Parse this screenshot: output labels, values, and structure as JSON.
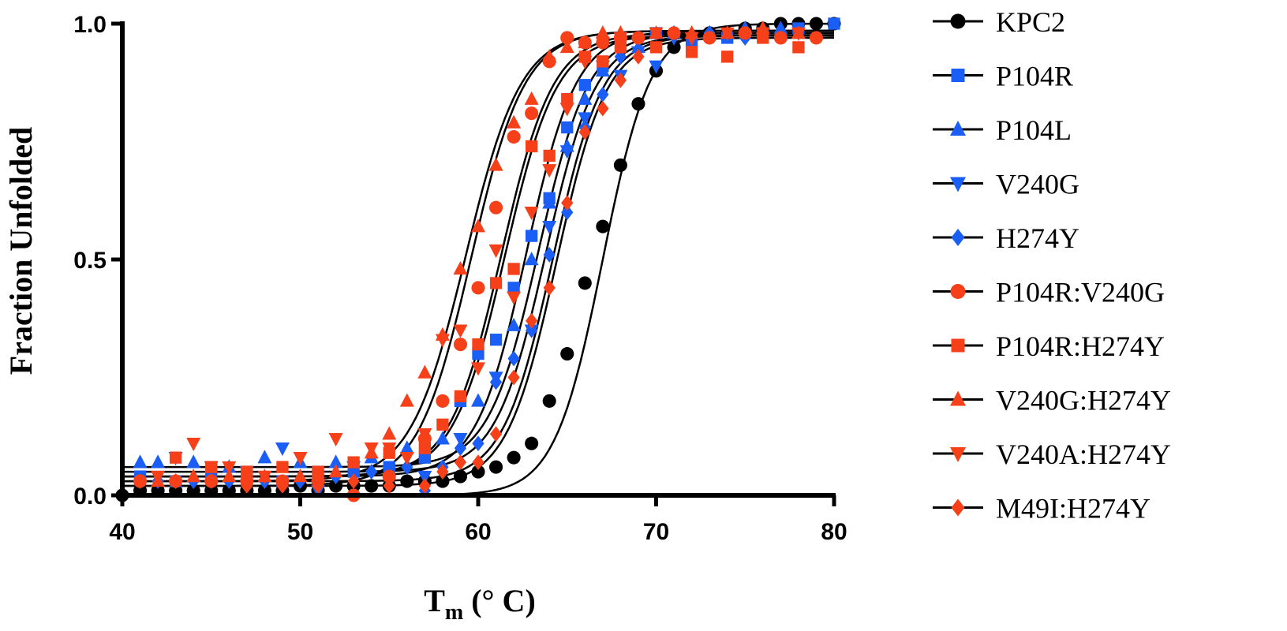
{
  "chart_data": {
    "type": "scatter",
    "title": "",
    "xlabel": "T",
    "xlabel_sub": "m",
    "xlabel_unit": " (° C)",
    "ylabel": "Fraction Unfolded",
    "xlim": [
      40,
      80
    ],
    "ylim": [
      0,
      1
    ],
    "xticks": [
      "40",
      "50",
      "60",
      "70",
      "80"
    ],
    "yticks": [
      "0.0",
      "0.5",
      "1.0"
    ],
    "grid": false,
    "legend_position": "right",
    "series": [
      {
        "name": "KPC2",
        "color": "#000000",
        "marker": "circle",
        "tm": 67.0,
        "slope": 1.35,
        "base": 0.0,
        "top": 1.0,
        "x": [
          40,
          41,
          42,
          43,
          44,
          45,
          46,
          47,
          48,
          49,
          50,
          51,
          52,
          53,
          54,
          55,
          56,
          57,
          58,
          59,
          60,
          61,
          62,
          63,
          64,
          65,
          66,
          67,
          68,
          69,
          70,
          71,
          72,
          73,
          74,
          75,
          76,
          77,
          78,
          79,
          80
        ],
        "y": [
          0.0,
          0.01,
          0.01,
          0.01,
          0.01,
          0.01,
          0.01,
          0.01,
          0.01,
          0.01,
          0.02,
          0.01,
          0.02,
          0.02,
          0.02,
          0.02,
          0.03,
          0.03,
          0.03,
          0.04,
          0.05,
          0.06,
          0.08,
          0.11,
          0.2,
          0.3,
          0.45,
          0.57,
          0.7,
          0.83,
          0.9,
          0.95,
          0.97,
          0.98,
          0.98,
          0.99,
          0.99,
          1.0,
          1.0,
          1.0,
          1.0
        ]
      },
      {
        "name": "P104R",
        "color": "#1a5ef5",
        "marker": "square",
        "tm": 62.7,
        "slope": 1.4,
        "base": 0.04,
        "top": 0.985,
        "x": [
          41,
          43,
          45,
          47,
          49,
          51,
          53,
          55,
          57,
          59,
          60,
          61,
          62,
          63,
          64,
          65,
          66,
          67,
          68,
          70,
          72,
          74,
          76,
          78,
          80
        ],
        "y": [
          0.04,
          0.03,
          0.04,
          0.05,
          0.03,
          0.05,
          0.05,
          0.06,
          0.08,
          0.2,
          0.3,
          0.33,
          0.44,
          0.55,
          0.63,
          0.78,
          0.87,
          0.91,
          0.97,
          0.98,
          0.96,
          0.97,
          0.98,
          0.99,
          1.0
        ]
      },
      {
        "name": "P104L",
        "color": "#1a5ef5",
        "marker": "triangle-up",
        "tm": 63.4,
        "slope": 1.4,
        "base": 0.06,
        "top": 0.98,
        "x": [
          41,
          42,
          44,
          46,
          48,
          50,
          52,
          54,
          56,
          58,
          60,
          62,
          63,
          64,
          65,
          66,
          67,
          69,
          71,
          73,
          75,
          77
        ],
        "y": [
          0.07,
          0.07,
          0.07,
          0.06,
          0.08,
          0.07,
          0.07,
          0.08,
          0.1,
          0.12,
          0.2,
          0.36,
          0.5,
          0.62,
          0.74,
          0.84,
          0.9,
          0.95,
          0.98,
          0.98,
          0.99,
          0.99
        ]
      },
      {
        "name": "V240G",
        "color": "#1a5ef5",
        "marker": "triangle-down",
        "tm": 63.8,
        "slope": 1.4,
        "base": 0.05,
        "top": 0.975,
        "x": [
          43,
          45,
          47,
          49,
          51,
          53,
          55,
          57,
          59,
          61,
          63,
          64,
          65,
          66,
          67,
          68,
          69,
          70,
          71
        ],
        "y": [
          0.08,
          0.06,
          0.05,
          0.1,
          0.01,
          0.06,
          0.05,
          0.04,
          0.12,
          0.25,
          0.35,
          0.57,
          0.73,
          0.8,
          0.91,
          0.89,
          0.94,
          0.91,
          0.97
        ]
      },
      {
        "name": "H274Y",
        "color": "#1a5ef5",
        "marker": "diamond",
        "tm": 64.2,
        "slope": 1.4,
        "base": 0.03,
        "top": 0.975,
        "x": [
          42,
          44,
          46,
          48,
          50,
          52,
          54,
          56,
          57,
          58,
          59,
          60,
          61,
          62,
          63,
          64,
          65,
          66,
          67,
          68,
          69,
          71,
          73,
          75,
          77
        ],
        "y": [
          0.03,
          0.03,
          0.03,
          0.03,
          0.03,
          0.04,
          0.05,
          0.06,
          0.01,
          0.06,
          0.1,
          0.11,
          0.24,
          0.29,
          0.35,
          0.51,
          0.6,
          0.78,
          0.85,
          0.93,
          0.97,
          0.98,
          0.98,
          0.97,
          0.98
        ]
      },
      {
        "name": "P104R:V240G",
        "color": "#f5401a",
        "marker": "circle",
        "tm": 59.6,
        "slope": 1.5,
        "base": 0.02,
        "top": 0.985,
        "x": [
          41,
          43,
          45,
          47,
          49,
          51,
          53,
          55,
          57,
          58,
          59,
          60,
          61,
          62,
          63,
          64,
          65,
          66,
          67,
          68,
          69,
          71,
          73,
          75,
          77,
          79
        ],
        "y": [
          0.03,
          0.03,
          0.03,
          0.03,
          0.03,
          0.03,
          0.0,
          0.04,
          0.12,
          0.2,
          0.32,
          0.44,
          0.61,
          0.76,
          0.81,
          0.92,
          0.97,
          0.96,
          0.96,
          0.97,
          0.97,
          0.98,
          0.97,
          0.98,
          0.97,
          0.97
        ]
      },
      {
        "name": "P104R:H274Y",
        "color": "#f5401a",
        "marker": "square",
        "tm": 61.5,
        "slope": 1.45,
        "base": 0.04,
        "top": 0.975,
        "x": [
          43,
          45,
          47,
          49,
          51,
          53,
          55,
          57,
          58,
          59,
          60,
          61,
          62,
          63,
          64,
          65,
          66,
          67,
          68,
          70,
          72,
          74,
          76,
          78
        ],
        "y": [
          0.08,
          0.06,
          0.05,
          0.06,
          0.05,
          0.07,
          0.09,
          0.1,
          0.15,
          0.21,
          0.32,
          0.45,
          0.48,
          0.74,
          0.72,
          0.84,
          0.93,
          0.92,
          0.95,
          0.95,
          0.94,
          0.93,
          0.97,
          0.95
        ]
      },
      {
        "name": "V240G:H274Y",
        "color": "#f5401a",
        "marker": "triangle-up",
        "tm": 59.3,
        "slope": 1.55,
        "base": 0.03,
        "top": 0.985,
        "x": [
          42,
          44,
          46,
          48,
          50,
          52,
          54,
          55,
          56,
          57,
          58,
          59,
          60,
          61,
          62,
          63,
          64,
          65,
          66,
          67,
          68,
          70,
          72,
          74,
          76,
          78
        ],
        "y": [
          0.03,
          0.04,
          0.04,
          0.04,
          0.04,
          0.05,
          0.09,
          0.13,
          0.2,
          0.26,
          0.34,
          0.48,
          0.57,
          0.7,
          0.79,
          0.84,
          0.93,
          0.95,
          0.96,
          0.98,
          0.98,
          0.98,
          0.98,
          0.98,
          0.99,
          0.98
        ]
      },
      {
        "name": "V240A:H274Y",
        "color": "#f5401a",
        "marker": "triangle-down",
        "tm": 61.3,
        "slope": 1.45,
        "base": 0.04,
        "top": 0.98,
        "x": [
          42,
          44,
          46,
          48,
          50,
          52,
          54,
          55,
          56,
          57,
          58,
          59,
          60,
          61,
          62,
          63,
          64,
          65,
          66,
          67,
          68,
          70,
          72,
          74,
          76,
          78
        ],
        "y": [
          0.04,
          0.11,
          0.06,
          0.04,
          0.08,
          0.12,
          0.1,
          0.1,
          0.08,
          0.13,
          0.33,
          0.35,
          0.27,
          0.52,
          0.42,
          0.6,
          0.69,
          0.82,
          0.92,
          0.96,
          0.97,
          0.98,
          0.97,
          0.98,
          0.98,
          0.98
        ]
      },
      {
        "name": "M49I:H274Y",
        "color": "#f5401a",
        "marker": "diamond",
        "tm": 64.4,
        "slope": 1.4,
        "base": 0.02,
        "top": 0.97,
        "x": [
          41,
          43,
          45,
          47,
          49,
          51,
          53,
          55,
          57,
          58,
          59,
          60,
          61,
          62,
          63,
          64,
          65,
          66,
          67,
          68,
          69
        ],
        "y": [
          0.03,
          0.03,
          0.03,
          0.02,
          0.02,
          0.02,
          0.03,
          0.02,
          0.02,
          0.05,
          0.07,
          0.07,
          0.13,
          0.25,
          0.37,
          0.44,
          0.62,
          0.77,
          0.82,
          0.88,
          0.93
        ]
      }
    ]
  }
}
